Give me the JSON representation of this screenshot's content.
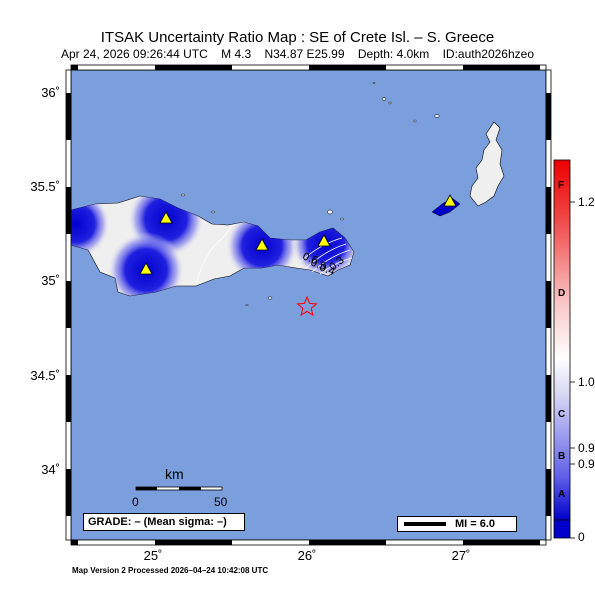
{
  "title": "ITSAK Uncertainty Ratio Map : SE of Crete Isl. – S. Greece",
  "subtitle": {
    "datetime": "Apr 24, 2026 09:26:44 UTC",
    "magnitude": "M 4.3",
    "location": "N34.87 E25.99",
    "depth": "Depth: 4.0km",
    "event_id": "ID:auth2026hzeo"
  },
  "axes": {
    "lat_labels": [
      "36˚",
      "35.5˚",
      "35˚",
      "34.5˚",
      "34˚"
    ],
    "lon_labels": [
      "25˚",
      "26˚",
      "27˚"
    ]
  },
  "scale_bar": {
    "title": "km",
    "min_label": "0",
    "max_label": "50"
  },
  "grade_box": "GRADE: – (Mean sigma: –)",
  "mi_legend": "MI = 6.0",
  "contour_labels": [
    "0.6",
    "0.5",
    "0.4",
    "0.3"
  ],
  "colorbar": {
    "letters": [
      "F",
      "D",
      "C",
      "B",
      "A"
    ],
    "values": [
      "1.2",
      "1.0",
      "0.9",
      "0.9",
      "0"
    ]
  },
  "footer": "Map Version 2 Processed 2026–04–24 10:42:08 UTC",
  "colors": {
    "sea": "#7a9fdc",
    "land": "#efefef",
    "station": "#ffff00",
    "epicenter": "#ff0000"
  }
}
